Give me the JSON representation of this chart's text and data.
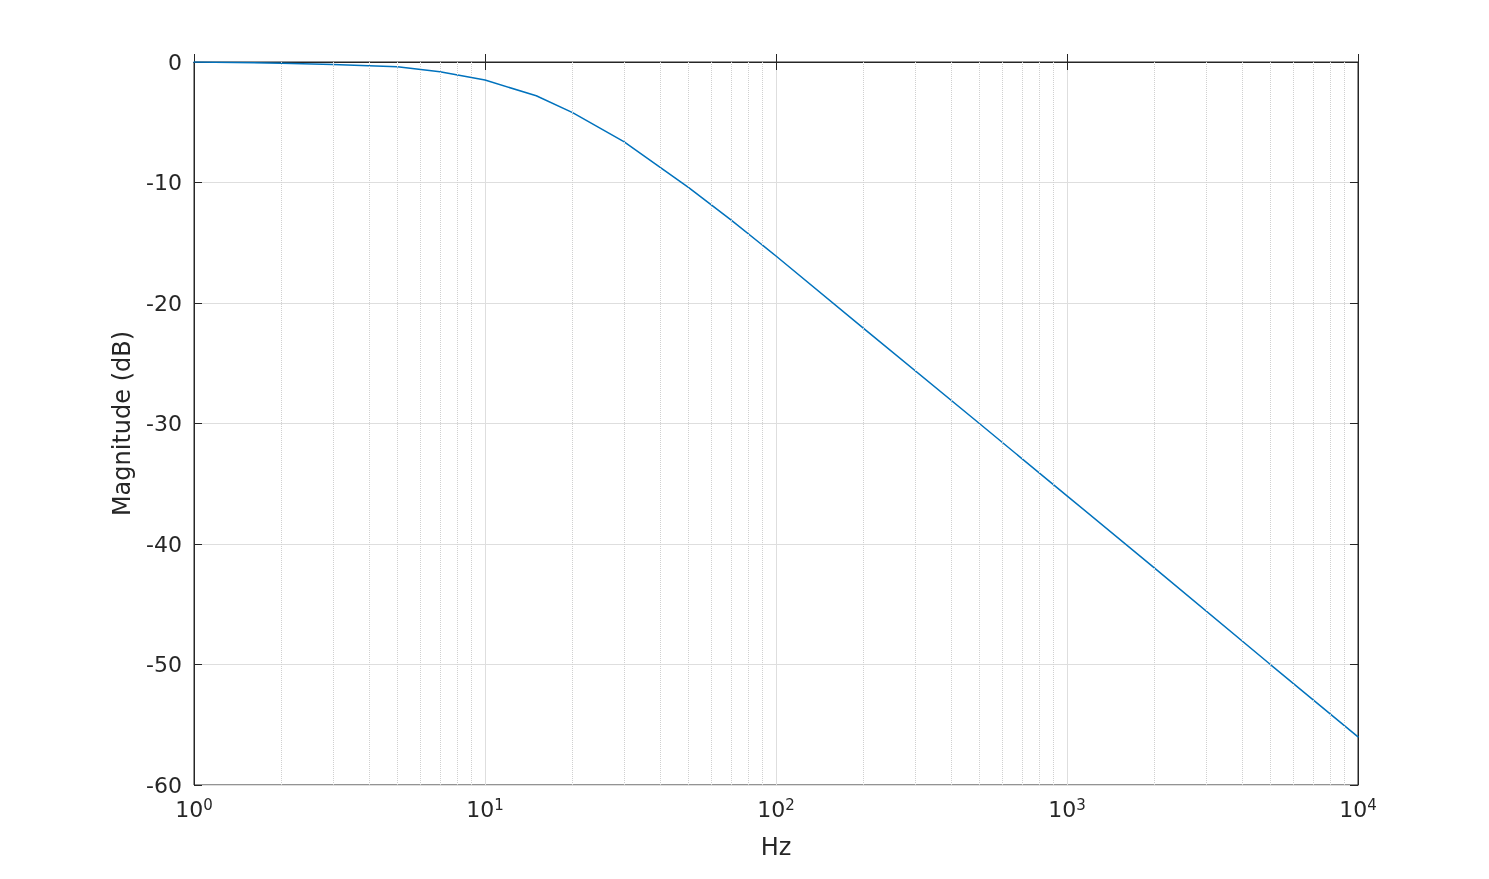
{
  "chart_data": {
    "type": "line",
    "xlabel": "Hz",
    "ylabel": "Magnitude (dB)",
    "x": [
      1,
      2,
      3,
      5,
      7,
      10,
      15,
      20,
      30,
      50,
      70,
      100,
      200,
      500,
      1000,
      2000,
      5000,
      10000
    ],
    "series": [
      {
        "color": "#0072bd",
        "values": [
          0,
          -0.1,
          -0.2,
          -0.4,
          -0.8,
          -1.5,
          -2.8,
          -4.2,
          -6.6,
          -10.4,
          -13.1,
          -16.1,
          -22.1,
          -30.0,
          -36.0,
          -42.0,
          -50.0,
          -56.0
        ]
      }
    ],
    "log": "x",
    "xlim": [
      1,
      10000
    ],
    "xticks": [
      {
        "value": 1,
        "label": "10$^{0}$"
      },
      {
        "value": 10,
        "label": "10$^{1}$"
      },
      {
        "value": 100,
        "label": "10$^{2}$"
      },
      {
        "value": 1000,
        "label": "10$^{3}$"
      },
      {
        "value": 10000,
        "label": "10$^{4}$"
      }
    ],
    "ylim": [
      -60,
      0
    ],
    "yticks": [
      -60,
      -50,
      -40,
      -30,
      -20,
      -10,
      0
    ],
    "grid": true,
    "marker": "none",
    "line_style": "solid"
  }
}
